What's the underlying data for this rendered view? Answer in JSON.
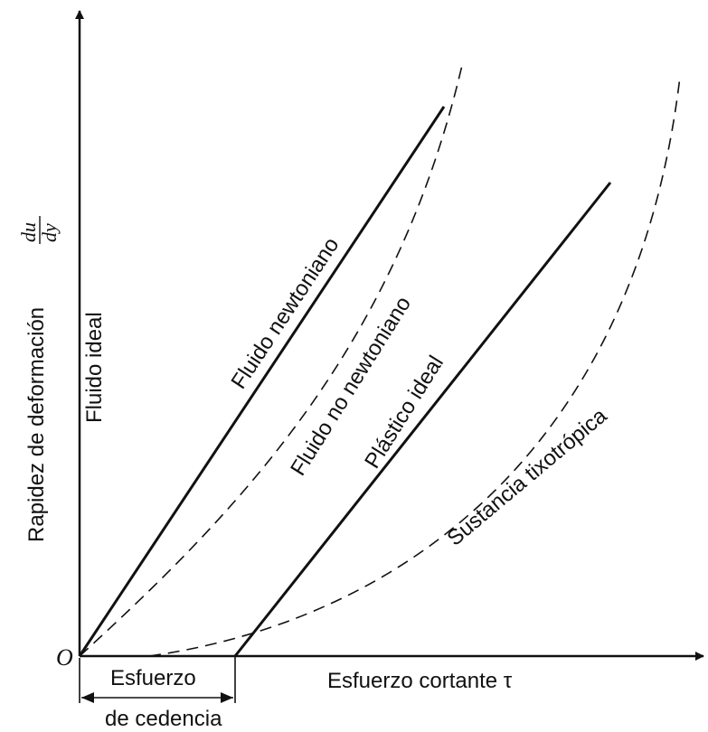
{
  "diagram": {
    "origin_label": "O",
    "y_axis_label": "Rapidez de deformación",
    "y_axis_fraction": {
      "numerator": "du",
      "denominator": "dy"
    },
    "x_axis_label": "Esfuerzo cortante τ",
    "curves": {
      "ideal_fluid": "Fluido ideal",
      "newtonian": "Fluido newtoniano",
      "non_newtonian": "Fluido no newtoniano",
      "ideal_plastic": "Plástico ideal",
      "thixotropic": "Sustancia tixotrópica"
    },
    "yield_stress": {
      "line1": "Esfuerzo",
      "line2": "de cedencia"
    }
  }
}
